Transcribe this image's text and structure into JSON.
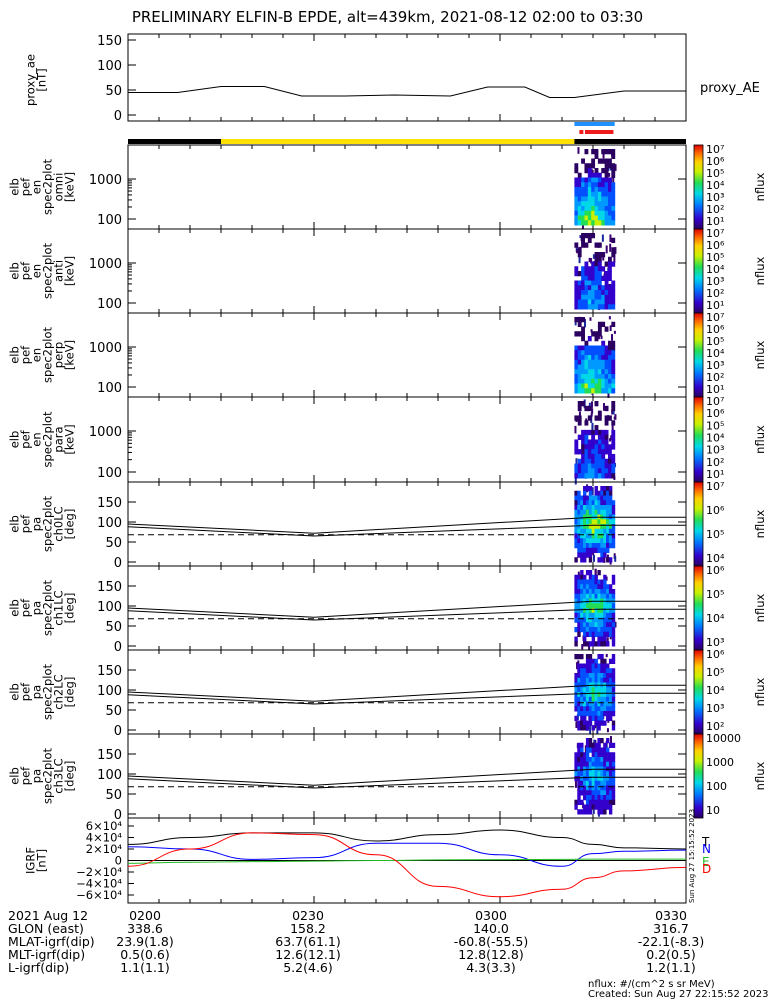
{
  "title": "PRELIMINARY ELFIN-B EPDE, alt=439km, 2021-08-12 02:00 to 03:30",
  "ae_panel": {
    "ylabel": [
      "proxy_ae",
      "[nT]"
    ],
    "yticks": [
      "150",
      "100",
      "50",
      "0"
    ],
    "legend": "proxy_AE"
  },
  "spectrogram_panels": [
    {
      "ylabel": [
        "elb",
        "pef",
        "en",
        "spec2plot",
        "omni",
        "[keV]"
      ],
      "yticks": [
        "1000",
        "100"
      ],
      "cbar_labels": [
        "10⁷",
        "10⁶",
        "10⁵",
        "10⁴",
        "10³",
        "10²",
        "10¹"
      ],
      "cbar_unit": "nflux"
    },
    {
      "ylabel": [
        "elb",
        "pef",
        "en",
        "spec2plot",
        "anti",
        "[keV]"
      ],
      "yticks": [
        "1000",
        "100"
      ],
      "cbar_labels": [
        "10⁷",
        "10⁶",
        "10⁵",
        "10⁴",
        "10³",
        "10²",
        "10¹"
      ],
      "cbar_unit": "nflux"
    },
    {
      "ylabel": [
        "elb",
        "pef",
        "en",
        "spec2plot",
        "perp",
        "[keV]"
      ],
      "yticks": [
        "1000",
        "100"
      ],
      "cbar_labels": [
        "10⁷",
        "10⁶",
        "10⁵",
        "10⁴",
        "10³",
        "10²",
        "10¹"
      ],
      "cbar_unit": "nflux"
    },
    {
      "ylabel": [
        "elb",
        "pef",
        "en",
        "spec2plot",
        "para",
        "[keV]"
      ],
      "yticks": [
        "1000",
        "100"
      ],
      "cbar_labels": [
        "10⁷",
        "10⁶",
        "10⁵",
        "10⁴",
        "10³",
        "10²",
        "10¹"
      ],
      "cbar_unit": "nflux"
    }
  ],
  "pitch_panels": [
    {
      "ylabel": [
        "elb",
        "pef",
        "pa",
        "spec2plot",
        "ch0LC",
        "[deg]"
      ],
      "yticks": [
        "150",
        "100",
        "50",
        "0"
      ],
      "cbar_labels": [
        "10⁷",
        "10⁶",
        "10⁵",
        "10⁴"
      ],
      "cbar_unit": "nflux"
    },
    {
      "ylabel": [
        "elb",
        "pef",
        "pa",
        "spec2plot",
        "ch1LC",
        "[deg]"
      ],
      "yticks": [
        "150",
        "100",
        "50",
        "0"
      ],
      "cbar_labels": [
        "10⁶",
        "10⁵",
        "10⁴",
        "10³"
      ],
      "cbar_unit": "nflux"
    },
    {
      "ylabel": [
        "elb",
        "pef",
        "pa",
        "spec2plot",
        "ch2LC",
        "[deg]"
      ],
      "yticks": [
        "150",
        "100",
        "50",
        "0"
      ],
      "cbar_labels": [
        "10⁶",
        "10⁵",
        "10⁴",
        "10³",
        "10²"
      ],
      "cbar_unit": "nflux"
    },
    {
      "ylabel": [
        "elb",
        "pef",
        "pa",
        "spec2plot",
        "ch3LC",
        "[deg]"
      ],
      "yticks": [
        "150",
        "100",
        "50",
        "0"
      ],
      "cbar_labels": [
        "10000",
        "1000",
        "100",
        "10"
      ],
      "cbar_unit": "nflux"
    }
  ],
  "igrf_panel": {
    "ylabel": [
      "IGRF",
      "[nT]"
    ],
    "yticks": [
      "6×10⁴",
      "4×10⁴",
      "2×10⁴",
      "0",
      "−2×10⁴",
      "−4×10⁴",
      "−6×10⁴"
    ],
    "legend": [
      "T",
      "N",
      "E",
      "D"
    ],
    "stamp": "Sun Aug 27 15:15:52 2023"
  },
  "colors": {
    "night_bar": "#000000",
    "day_bar": "#ffe000",
    "blue_bar": "#1e90ff",
    "red_bar": "#ee1c1c",
    "igrf_T": "#000000",
    "igrf_N": "#0000ff",
    "igrf_E": "#22bb22",
    "igrf_D": "#ff0000"
  },
  "chart_data": [
    {
      "type": "line",
      "title": "proxy_ae",
      "ylabel": "proxy_ae [nT]",
      "ylim": [
        0,
        150
      ],
      "x_time_minutes": [
        0,
        8,
        15,
        22,
        28,
        35,
        43,
        52,
        58,
        64,
        68,
        72,
        80,
        84,
        90
      ],
      "series": [
        {
          "name": "proxy_AE",
          "values": [
            45,
            45,
            57,
            57,
            38,
            38,
            40,
            38,
            56,
            56,
            35,
            35,
            48,
            48,
            48
          ]
        }
      ]
    },
    {
      "type": "heatmap",
      "panels": [
        "omni",
        "anti",
        "perp",
        "para",
        "ch0LC",
        "ch1LC",
        "ch2LC",
        "ch3LC"
      ],
      "x_range_minutes": [
        0,
        90
      ],
      "data_window_minutes": [
        72,
        78.5
      ],
      "energy_ylim_keV": [
        60,
        7000
      ],
      "pitch_ylim_deg": [
        0,
        180
      ],
      "colorbar": "nflux #/(cm^2 s sr MeV)"
    },
    {
      "type": "line",
      "title": "IGRF",
      "ylabel": "IGRF [nT]",
      "ylim": [
        -70000,
        70000
      ],
      "x_time_minutes": [
        0,
        10,
        20,
        30,
        40,
        50,
        60,
        70,
        75,
        80,
        90
      ],
      "series": [
        {
          "name": "T",
          "values": [
            28000,
            40000,
            48000,
            48000,
            34000,
            45000,
            53000,
            40000,
            28000,
            22000,
            20000
          ]
        },
        {
          "name": "N",
          "values": [
            24000,
            20000,
            2000,
            5000,
            30000,
            30000,
            10000,
            -10000,
            12000,
            16000,
            18000
          ]
        },
        {
          "name": "E",
          "values": [
            -5000,
            -3000,
            -2000,
            -1000,
            0,
            1000,
            1500,
            2000,
            2500,
            2500,
            2500
          ]
        },
        {
          "name": "D",
          "values": [
            -10000,
            20000,
            48000,
            45000,
            10000,
            -45000,
            -63000,
            -50000,
            -30000,
            -18000,
            -12000
          ]
        }
      ]
    }
  ],
  "footer": {
    "rows": [
      [
        "2021 Aug 12",
        "0200",
        "0230",
        "0300",
        "0330"
      ],
      [
        "GLON (east)",
        "338.6",
        "158.2",
        "140.0",
        "316.7"
      ],
      [
        "MLAT-igrf(dip)",
        "23.9(1.8)",
        "63.7(61.1)",
        "-60.8(-55.5)",
        "-22.1(-8.3)"
      ],
      [
        "MLT-igrf(dip)",
        "0.5(0.6)",
        "12.6(12.1)",
        "12.8(12.8)",
        "0.2(0.5)"
      ],
      [
        "L-igrf(dip)",
        "1.1(1.1)",
        "5.2(4.6)",
        "4.3(3.3)",
        "1.2(1.1)"
      ]
    ],
    "nflux_line": "nflux: #/(cm^2 s sr MeV)",
    "created": "Created: Sun Aug 27 22:15:52 2023"
  }
}
